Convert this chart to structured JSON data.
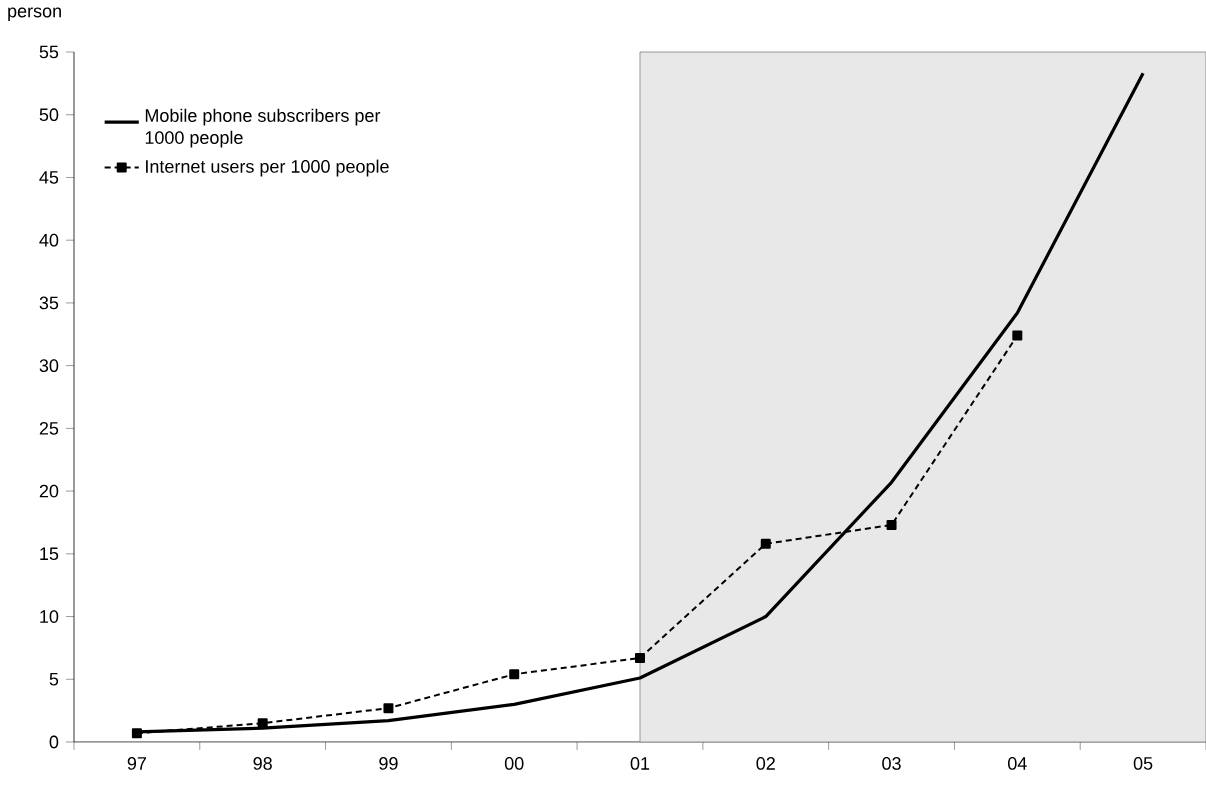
{
  "chart_data": {
    "type": "line",
    "ylabel": "person",
    "categories": [
      "97",
      "98",
      "99",
      "00",
      "01",
      "02",
      "03",
      "04",
      "05"
    ],
    "series": [
      {
        "name": "Mobile phone subscribers per 1000 people",
        "color": "#000000",
        "line_style": "solid",
        "marker": "none",
        "values": [
          0.8,
          1.1,
          1.7,
          3.0,
          5.1,
          10.0,
          20.7,
          34.2,
          53.3
        ]
      },
      {
        "name": "Internet users per 1000 people",
        "color": "#000000",
        "line_style": "dotted",
        "marker": "square",
        "values": [
          0.7,
          1.5,
          2.7,
          5.4,
          6.7,
          15.8,
          17.3,
          32.4,
          null
        ]
      }
    ],
    "ylim": [
      0,
      55
    ],
    "yticks": [
      0,
      5,
      10,
      15,
      20,
      25,
      30,
      35,
      40,
      45,
      50,
      55
    ],
    "grid": false,
    "legend": "top left",
    "bands": [
      {
        "axis": "x",
        "from": "01",
        "to": "05",
        "color": "#e8e8e8"
      }
    ]
  }
}
